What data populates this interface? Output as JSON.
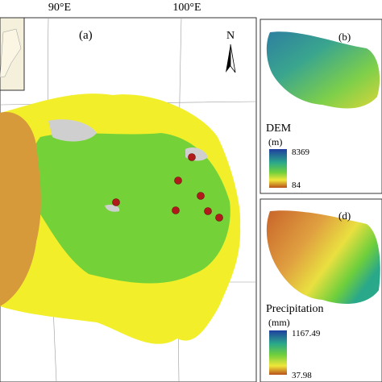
{
  "panel_a": {
    "label": "(a)",
    "lon_labels": [
      "90°E",
      "100°E"
    ],
    "north": "N"
  },
  "panel_b": {
    "label": "(b)",
    "legend_title": "DEM",
    "legend_unit": "(m)",
    "legend_max": 8369,
    "legend_min": 84
  },
  "panel_d": {
    "label": "(d)",
    "legend_title": "Precipitation",
    "legend_unit": "(mm)",
    "legend_max": 1167.49,
    "legend_min": 37.98
  }
}
